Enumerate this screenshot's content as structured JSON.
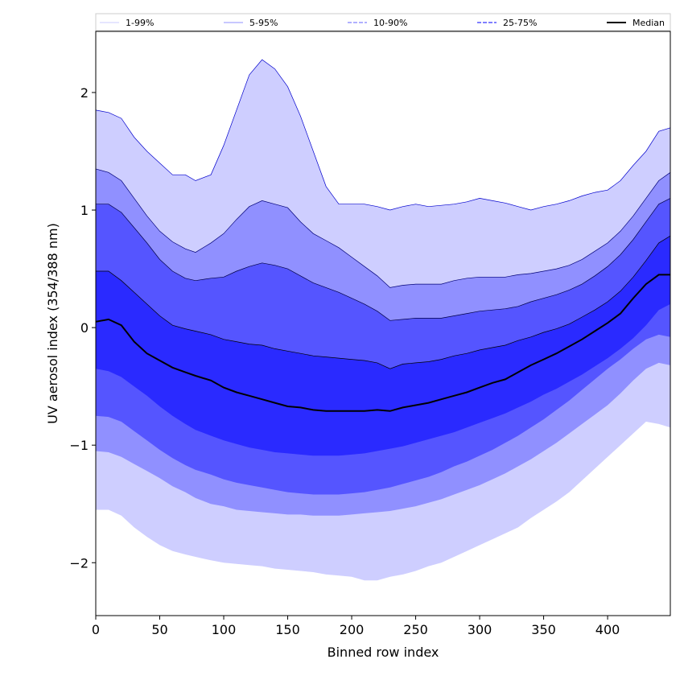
{
  "chart_data": {
    "type": "area",
    "xlabel": "Binned row index",
    "ylabel": "UV aerosol index (354/388 nm)",
    "xlim": [
      0,
      449
    ],
    "ylim": [
      -2.45,
      2.52
    ],
    "xticks": [
      0,
      50,
      100,
      150,
      200,
      250,
      300,
      350,
      400
    ],
    "yticks": [
      -2,
      -1,
      0,
      1,
      2
    ],
    "yticklabels": [
      "−2",
      "−1",
      "0",
      "1",
      "2"
    ],
    "x": [
      0,
      10,
      20,
      30,
      40,
      50,
      60,
      70,
      78,
      90,
      100,
      110,
      120,
      130,
      140,
      150,
      160,
      170,
      180,
      190,
      200,
      210,
      220,
      230,
      240,
      250,
      260,
      270,
      280,
      290,
      300,
      310,
      320,
      330,
      340,
      350,
      360,
      370,
      380,
      390,
      400,
      410,
      420,
      430,
      440,
      449
    ],
    "series": [
      {
        "name": "1-99%",
        "legend": "1-99%",
        "color": "#ceceff",
        "edge": "#0000cc",
        "upper": [
          1.85,
          1.83,
          1.78,
          1.62,
          1.5,
          1.4,
          1.3,
          1.3,
          1.25,
          1.3,
          1.55,
          1.85,
          2.15,
          2.28,
          2.2,
          2.05,
          1.8,
          1.5,
          1.2,
          1.05,
          1.05,
          1.05,
          1.03,
          1.0,
          1.03,
          1.05,
          1.03,
          1.04,
          1.05,
          1.07,
          1.1,
          1.08,
          1.06,
          1.03,
          1.0,
          1.03,
          1.05,
          1.08,
          1.12,
          1.15,
          1.17,
          1.25,
          1.38,
          1.5,
          1.67,
          1.7
        ],
        "lower": [
          -1.55,
          -1.55,
          -1.6,
          -1.7,
          -1.78,
          -1.85,
          -1.9,
          -1.93,
          -1.95,
          -1.98,
          -2.0,
          -2.01,
          -2.02,
          -2.03,
          -2.05,
          -2.06,
          -2.07,
          -2.08,
          -2.1,
          -2.11,
          -2.12,
          -2.15,
          -2.15,
          -2.12,
          -2.1,
          -2.07,
          -2.03,
          -2.0,
          -1.95,
          -1.9,
          -1.85,
          -1.8,
          -1.75,
          -1.7,
          -1.62,
          -1.55,
          -1.48,
          -1.4,
          -1.3,
          -1.2,
          -1.1,
          -1.0,
          -0.9,
          -0.8,
          -0.82,
          -0.85
        ]
      },
      {
        "name": "5-95%",
        "legend": "5-95%",
        "color": "#9090ff",
        "edge": "#000077",
        "upper": [
          1.35,
          1.32,
          1.25,
          1.1,
          0.95,
          0.82,
          0.73,
          0.67,
          0.64,
          0.72,
          0.8,
          0.92,
          1.03,
          1.08,
          1.05,
          1.02,
          0.9,
          0.8,
          0.74,
          0.68,
          0.6,
          0.52,
          0.44,
          0.34,
          0.36,
          0.37,
          0.37,
          0.37,
          0.4,
          0.42,
          0.43,
          0.43,
          0.43,
          0.45,
          0.46,
          0.48,
          0.5,
          0.53,
          0.58,
          0.65,
          0.72,
          0.82,
          0.95,
          1.1,
          1.25,
          1.32
        ],
        "lower": [
          -1.05,
          -1.06,
          -1.1,
          -1.16,
          -1.22,
          -1.28,
          -1.35,
          -1.4,
          -1.45,
          -1.5,
          -1.52,
          -1.55,
          -1.56,
          -1.57,
          -1.58,
          -1.59,
          -1.59,
          -1.6,
          -1.6,
          -1.6,
          -1.59,
          -1.58,
          -1.57,
          -1.56,
          -1.54,
          -1.52,
          -1.49,
          -1.46,
          -1.42,
          -1.38,
          -1.34,
          -1.29,
          -1.24,
          -1.18,
          -1.12,
          -1.05,
          -0.98,
          -0.9,
          -0.82,
          -0.74,
          -0.66,
          -0.56,
          -0.45,
          -0.35,
          -0.3,
          -0.32
        ]
      },
      {
        "name": "10-90%",
        "legend": "10-90%",
        "color": "#5555ff",
        "edge": "#000044",
        "upper": [
          1.05,
          1.05,
          0.98,
          0.85,
          0.72,
          0.58,
          0.48,
          0.42,
          0.4,
          0.42,
          0.43,
          0.48,
          0.52,
          0.55,
          0.53,
          0.5,
          0.44,
          0.38,
          0.34,
          0.3,
          0.25,
          0.2,
          0.14,
          0.06,
          0.07,
          0.08,
          0.08,
          0.08,
          0.1,
          0.12,
          0.14,
          0.15,
          0.16,
          0.18,
          0.22,
          0.25,
          0.28,
          0.32,
          0.37,
          0.44,
          0.52,
          0.62,
          0.75,
          0.9,
          1.05,
          1.1
        ],
        "lower": [
          -0.75,
          -0.76,
          -0.8,
          -0.88,
          -0.96,
          -1.04,
          -1.11,
          -1.17,
          -1.21,
          -1.25,
          -1.29,
          -1.32,
          -1.34,
          -1.36,
          -1.38,
          -1.4,
          -1.41,
          -1.42,
          -1.42,
          -1.42,
          -1.41,
          -1.4,
          -1.38,
          -1.36,
          -1.33,
          -1.3,
          -1.27,
          -1.23,
          -1.18,
          -1.14,
          -1.09,
          -1.04,
          -0.98,
          -0.92,
          -0.85,
          -0.78,
          -0.7,
          -0.62,
          -0.53,
          -0.44,
          -0.35,
          -0.27,
          -0.18,
          -0.1,
          -0.06,
          -0.08
        ]
      },
      {
        "name": "25-75%",
        "legend": "25-75%",
        "color": "#2a2aff",
        "edge": "#000000",
        "upper": [
          0.48,
          0.48,
          0.4,
          0.3,
          0.2,
          0.1,
          0.02,
          -0.01,
          -0.03,
          -0.06,
          -0.1,
          -0.12,
          -0.14,
          -0.15,
          -0.18,
          -0.2,
          -0.22,
          -0.24,
          -0.25,
          -0.26,
          -0.27,
          -0.28,
          -0.3,
          -0.35,
          -0.31,
          -0.3,
          -0.29,
          -0.27,
          -0.24,
          -0.22,
          -0.19,
          -0.17,
          -0.15,
          -0.11,
          -0.08,
          -0.04,
          -0.01,
          0.03,
          0.09,
          0.15,
          0.22,
          0.31,
          0.43,
          0.57,
          0.72,
          0.78
        ],
        "lower": [
          -0.35,
          -0.37,
          -0.42,
          -0.5,
          -0.58,
          -0.67,
          -0.75,
          -0.82,
          -0.87,
          -0.92,
          -0.96,
          -0.99,
          -1.02,
          -1.04,
          -1.06,
          -1.07,
          -1.08,
          -1.09,
          -1.09,
          -1.09,
          -1.08,
          -1.07,
          -1.05,
          -1.03,
          -1.01,
          -0.98,
          -0.95,
          -0.92,
          -0.89,
          -0.85,
          -0.81,
          -0.77,
          -0.73,
          -0.68,
          -0.63,
          -0.57,
          -0.52,
          -0.46,
          -0.4,
          -0.33,
          -0.26,
          -0.18,
          -0.09,
          0.02,
          0.15,
          0.2
        ]
      },
      {
        "name": "Median",
        "legend": "Median",
        "color": "#000000",
        "values": [
          0.05,
          0.07,
          0.02,
          -0.12,
          -0.22,
          -0.28,
          -0.34,
          -0.38,
          -0.41,
          -0.45,
          -0.51,
          -0.55,
          -0.58,
          -0.61,
          -0.64,
          -0.67,
          -0.68,
          -0.7,
          -0.71,
          -0.71,
          -0.71,
          -0.71,
          -0.7,
          -0.71,
          -0.68,
          -0.66,
          -0.64,
          -0.61,
          -0.58,
          -0.55,
          -0.51,
          -0.47,
          -0.44,
          -0.38,
          -0.32,
          -0.27,
          -0.22,
          -0.16,
          -0.1,
          -0.03,
          0.04,
          0.12,
          0.25,
          0.37,
          0.45,
          0.45
        ]
      }
    ]
  }
}
